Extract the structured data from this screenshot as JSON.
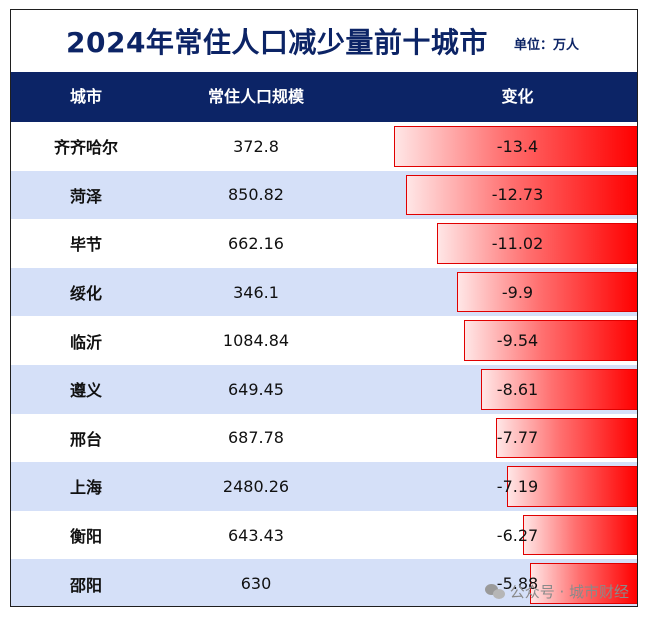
{
  "title": "2024年常住人口减少量前十城市",
  "unit": "单位：万人",
  "headers": {
    "city": "城市",
    "population": "常住人口规模",
    "change": "变化"
  },
  "rows": [
    {
      "city": "齐齐哈尔",
      "population": "372.8",
      "change": "-13.4"
    },
    {
      "city": "菏泽",
      "population": "850.82",
      "change": "-12.73"
    },
    {
      "city": "毕节",
      "population": "662.16",
      "change": "-11.02"
    },
    {
      "city": "绥化",
      "population": "346.1",
      "change": "-9.9"
    },
    {
      "city": "临沂",
      "population": "1084.84",
      "change": "-9.54"
    },
    {
      "city": "遵义",
      "population": "649.45",
      "change": "-8.61"
    },
    {
      "city": "邢台",
      "population": "687.78",
      "change": "-7.77"
    },
    {
      "city": "上海",
      "population": "2480.26",
      "change": "-7.19"
    },
    {
      "city": "衡阳",
      "population": "643.43",
      "change": "-6.27"
    },
    {
      "city": "邵阳",
      "population": "630",
      "change": "-5.88"
    }
  ],
  "bar_color": "#ff0000",
  "header_color": "#0c2466",
  "stripe_color": "#d5e0f8",
  "watermark": {
    "icon": "wechat-icon",
    "text": "公众号 · 城市财经"
  }
}
